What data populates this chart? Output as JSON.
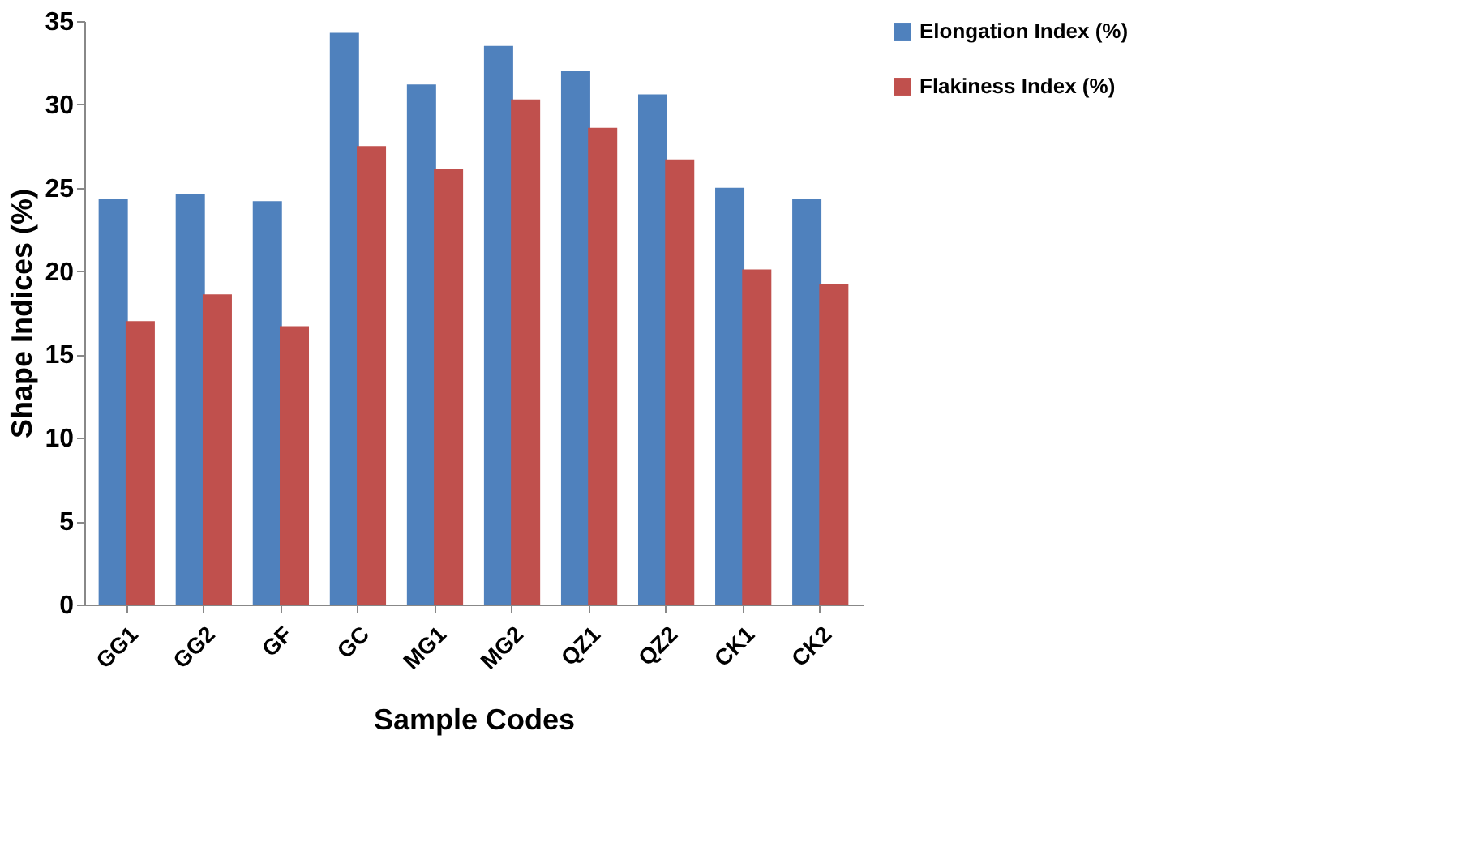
{
  "chart_data": {
    "type": "bar",
    "xlabel": "Sample Codes",
    "ylabel": "Shape Indices (%)",
    "categories": [
      "GG1",
      "GG2",
      "GF",
      "GC",
      "MG1",
      "MG2",
      "QZ1",
      "QZ2",
      "CK1",
      "CK2"
    ],
    "series": [
      {
        "name": "Elongation Index (%)",
        "color": "#4f81bd",
        "values": [
          24.3,
          24.6,
          24.2,
          34.3,
          31.2,
          33.5,
          32.0,
          30.6,
          25.0,
          24.3
        ]
      },
      {
        "name": "Flakiness Index (%)",
        "color": "#c0504d",
        "values": [
          17.0,
          18.6,
          16.7,
          27.5,
          26.1,
          30.3,
          28.6,
          26.7,
          20.1,
          19.2
        ]
      }
    ],
    "ylim": [
      0,
      35
    ],
    "yticks": [
      0,
      5,
      10,
      15,
      20,
      25,
      30,
      35
    ],
    "grid": false,
    "legend": "right"
  }
}
